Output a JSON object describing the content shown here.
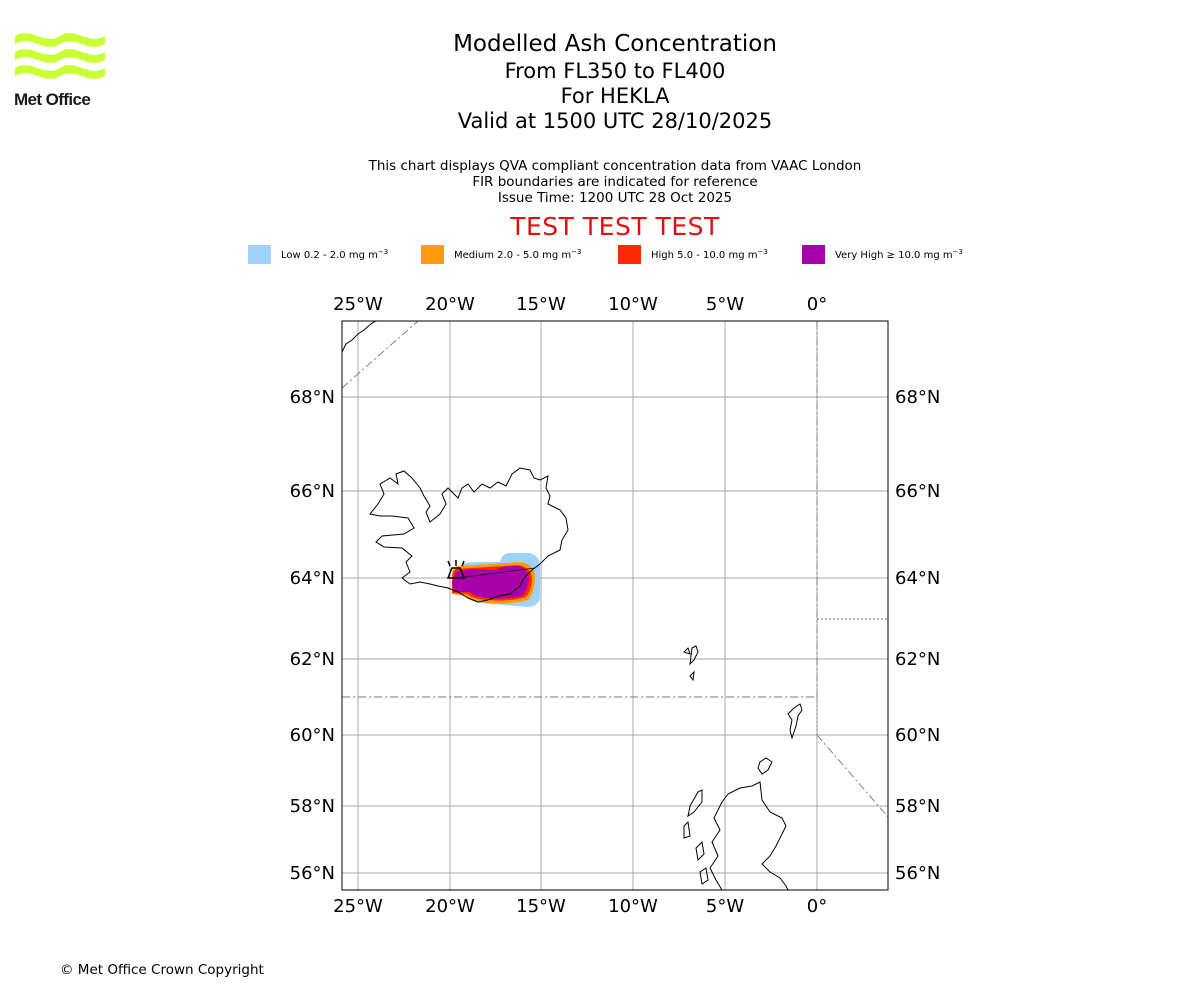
{
  "logo": {
    "name": "Met Office",
    "brand_color": "#c8ff32"
  },
  "header": {
    "title": "Modelled Ash Concentration",
    "levels": "From FL350 to FL400",
    "volcano": "For HEKLA",
    "valid_time": "Valid at 1500 UTC 28/10/2025"
  },
  "description": {
    "line1": "This chart displays QVA compliant concentration data from VAAC London",
    "line2": "FIR boundaries are indicated for reference",
    "line3": "Issue Time: 1200 UTC 28 Oct 2025"
  },
  "banner": {
    "text": "TEST TEST TEST",
    "color": "#dd1111"
  },
  "legend": {
    "items": [
      {
        "label": "Low 0.2 - 2.0 mg m",
        "color": "#9fd2fb"
      },
      {
        "label": "Medium 2.0 - 5.0 mg m",
        "color": "#ff9a0a"
      },
      {
        "label": "High 5.0 - 10.0 mg m",
        "color": "#ff2a00"
      },
      {
        "label": "Very High ≥ 10.0 mg m",
        "color": "#aa00aa"
      }
    ],
    "unit_exponent": "−3"
  },
  "map": {
    "lon_ticks": [
      "25°W",
      "20°W",
      "15°W",
      "10°W",
      "5°W",
      "0°"
    ],
    "lat_ticks": [
      "68°N",
      "66°N",
      "64°N",
      "62°N",
      "60°N",
      "58°N",
      "56°N"
    ],
    "grid_color": "#aaaaaa"
  },
  "footer": {
    "copyright": "© Met Office Crown Copyright"
  }
}
